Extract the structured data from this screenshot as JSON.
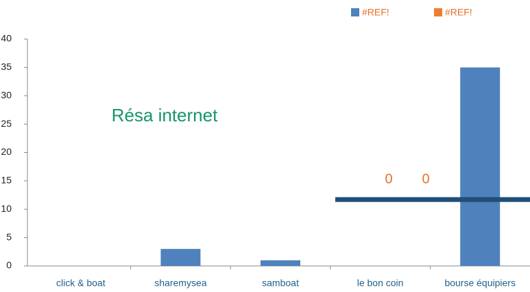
{
  "chart_data": {
    "type": "bar",
    "title": "Résa internet",
    "categories": [
      "click & boat",
      "sharemysea",
      "samboat",
      "le bon coin",
      "bourse équipiers"
    ],
    "series": [
      {
        "name": "#REF!",
        "color": "#4f81bd",
        "values": [
          0,
          3,
          1,
          0,
          35
        ]
      },
      {
        "name": "#REF!",
        "color": "#ed7d31",
        "values": [
          null,
          null,
          null,
          null,
          null
        ]
      }
    ],
    "annotations": [
      "0",
      "0"
    ],
    "hline": {
      "value": 11.7,
      "color": "#1f4e79"
    },
    "ylim": [
      0,
      40
    ],
    "yticks": [
      0,
      5,
      10,
      15,
      20,
      25,
      30,
      35,
      40
    ],
    "grid": false
  }
}
